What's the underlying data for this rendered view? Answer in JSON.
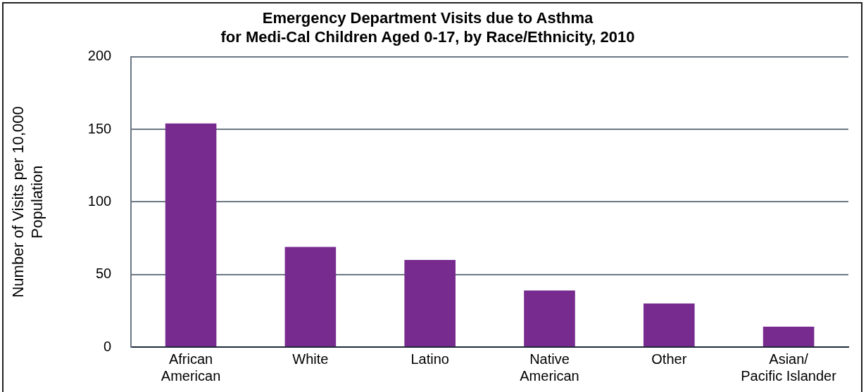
{
  "chart_data": {
    "type": "bar",
    "title": "Emergency Department Visits due to Asthma\nfor Medi-Cal Children Aged 0-17, by Race/Ethnicity, 2010",
    "ylabel": "Number of Visits per 10,000 Population",
    "categories": [
      "African American",
      "White",
      "Latino",
      "Native American",
      "Other",
      "Asian/Pacific Islander"
    ],
    "values": [
      154,
      69,
      60,
      39,
      30,
      14
    ],
    "color": "#782b8f",
    "ylim": [
      0,
      200
    ],
    "yticks": [
      0,
      50,
      100,
      150,
      200
    ],
    "grid": "y",
    "legend": false
  }
}
